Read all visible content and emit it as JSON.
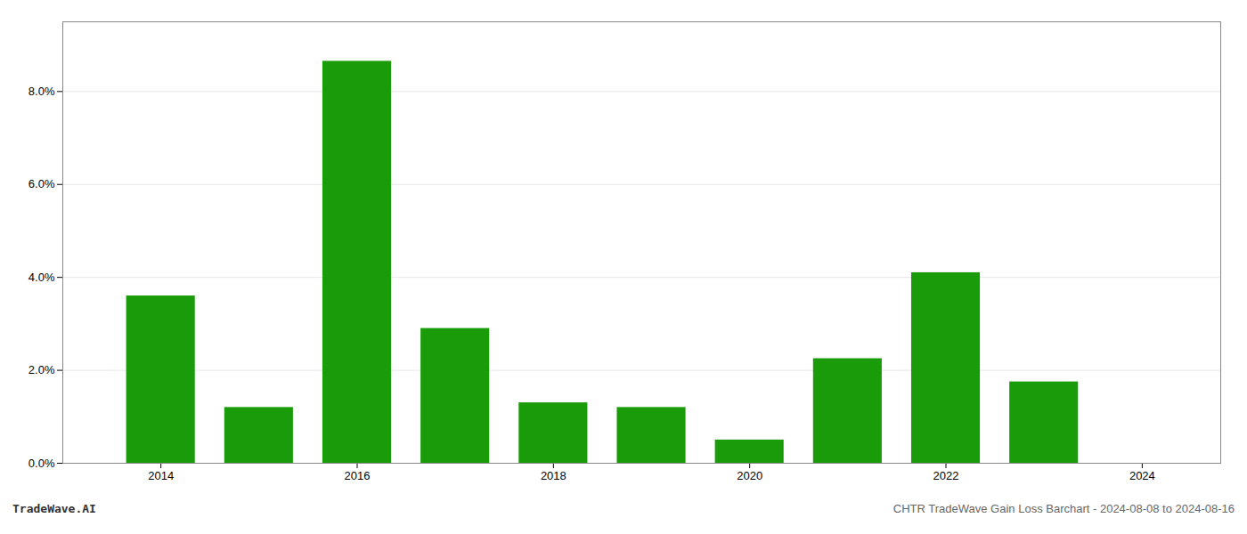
{
  "chart_data": {
    "type": "bar",
    "x": [
      2014,
      2015,
      2016,
      2017,
      2018,
      2019,
      2020,
      2021,
      2022,
      2023,
      2024
    ],
    "values": [
      0.036,
      0.012,
      0.0865,
      0.029,
      0.013,
      0.012,
      0.005,
      0.0225,
      0.041,
      0.0175,
      0.0
    ],
    "color": "#1a9c0a",
    "xlim": [
      2013.0,
      2024.8
    ],
    "xticks": [
      2014,
      2016,
      2018,
      2020,
      2022,
      2024
    ],
    "ylim": [
      0,
      0.095
    ],
    "yticks": [
      {
        "value": 0.0,
        "label": "0.0%"
      },
      {
        "value": 0.02,
        "label": "2.0%"
      },
      {
        "value": 0.04,
        "label": "4.0%"
      },
      {
        "value": 0.06,
        "label": "6.0%"
      },
      {
        "value": 0.08,
        "label": "8.0%"
      }
    ],
    "grid": true,
    "annotations": [
      "TradeWave.AI",
      "CHTR TradeWave Gain Loss Barchart - 2024-08-08 to 2024-08-16"
    ]
  }
}
